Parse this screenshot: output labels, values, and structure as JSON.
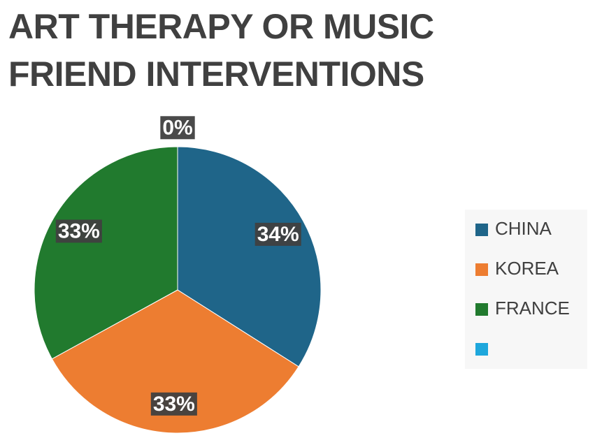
{
  "chart_data": {
    "type": "pie",
    "title": "ART THERAPY OR MUSIC FRIEND INTERVENTIONS",
    "categories": [
      "CHINA",
      "KOREA",
      "FRANCE",
      null
    ],
    "values": [
      34,
      33,
      33,
      0
    ],
    "value_labels": [
      "34%",
      "33%",
      "33%",
      "0%"
    ],
    "colors": [
      "#1f6589",
      "#ed7d31",
      "#217a2e",
      "#1ea7dc"
    ],
    "legend": "right"
  }
}
